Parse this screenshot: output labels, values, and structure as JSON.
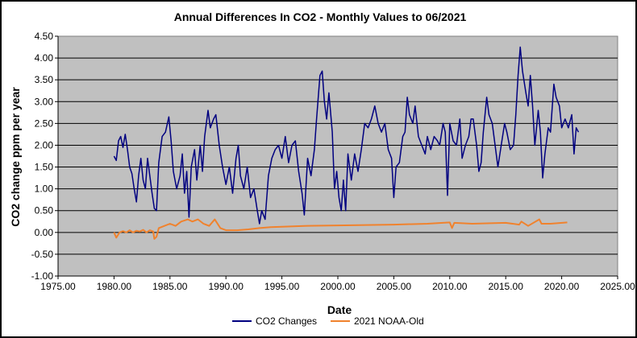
{
  "chart_data": {
    "type": "line",
    "title": "Annual Differences In CO2 - Monthly Values to 06/2021",
    "xlabel": "Date",
    "ylabel": "CO2 change ppm per year",
    "xlim": [
      1975,
      2025
    ],
    "ylim": [
      -1,
      4.5
    ],
    "xticks": [
      "1975.00",
      "1980.00",
      "1985.00",
      "1990.00",
      "1995.00",
      "2000.00",
      "2005.00",
      "2010.00",
      "2015.00",
      "2020.00",
      "2025.00"
    ],
    "yticks": [
      "4.50",
      "4.00",
      "3.50",
      "3.00",
      "2.50",
      "2.00",
      "1.50",
      "1.00",
      "0.50",
      "0.00",
      "-0.50",
      "-1.00"
    ],
    "grid": "horizontal",
    "plot_background": "#C0C0C0",
    "legend_placement": "bottom",
    "series": [
      {
        "name": "CO2 Changes",
        "color": "#000080",
        "x": [
          1980.0,
          1980.2,
          1980.4,
          1980.6,
          1980.8,
          1981.0,
          1981.2,
          1981.4,
          1981.6,
          1981.8,
          1982.0,
          1982.2,
          1982.4,
          1982.6,
          1982.8,
          1983.0,
          1983.2,
          1983.4,
          1983.6,
          1983.8,
          1984.0,
          1984.3,
          1984.6,
          1984.9,
          1985.1,
          1985.3,
          1985.6,
          1985.9,
          1986.1,
          1986.3,
          1986.5,
          1986.7,
          1986.9,
          1987.2,
          1987.4,
          1987.7,
          1987.9,
          1988.1,
          1988.4,
          1988.6,
          1988.9,
          1989.1,
          1989.4,
          1989.7,
          1990.0,
          1990.3,
          1990.6,
          1990.9,
          1991.1,
          1991.3,
          1991.6,
          1991.9,
          1992.2,
          1992.5,
          1992.8,
          1993.0,
          1993.2,
          1993.5,
          1993.8,
          1994.1,
          1994.4,
          1994.7,
          1995.0,
          1995.3,
          1995.6,
          1995.9,
          1996.2,
          1996.5,
          1996.8,
          1997.0,
          1997.3,
          1997.6,
          1997.9,
          1998.1,
          1998.4,
          1998.6,
          1998.8,
          1999.0,
          1999.2,
          1999.5,
          1999.7,
          1999.9,
          2000.1,
          2000.3,
          2000.5,
          2000.7,
          2000.9,
          2001.2,
          2001.5,
          2001.8,
          2002.1,
          2002.4,
          2002.7,
          2003.0,
          2003.3,
          2003.6,
          2003.9,
          2004.2,
          2004.5,
          2004.8,
          2005.0,
          2005.2,
          2005.5,
          2005.8,
          2006.0,
          2006.2,
          2006.4,
          2006.7,
          2006.9,
          2007.2,
          2007.5,
          2007.8,
          2008.0,
          2008.3,
          2008.6,
          2008.9,
          2009.1,
          2009.4,
          2009.6,
          2009.8,
          2010.0,
          2010.3,
          2010.6,
          2010.9,
          2011.1,
          2011.4,
          2011.7,
          2011.9,
          2012.1,
          2012.4,
          2012.6,
          2012.8,
          2013.0,
          2013.3,
          2013.5,
          2013.8,
          2014.0,
          2014.3,
          2014.6,
          2014.9,
          2015.1,
          2015.4,
          2015.7,
          2015.9,
          2016.1,
          2016.3,
          2016.5,
          2016.8,
          2017.0,
          2017.2,
          2017.4,
          2017.6,
          2017.9,
          2018.1,
          2018.3,
          2018.5,
          2018.8,
          2019.0,
          2019.3,
          2019.5,
          2019.8,
          2020.0,
          2020.3,
          2020.6,
          2020.9,
          2021.1,
          2021.3,
          2021.5
        ],
        "y": [
          1.75,
          1.65,
          2.1,
          2.2,
          1.95,
          2.25,
          1.9,
          1.5,
          1.35,
          1.0,
          0.7,
          1.3,
          1.7,
          1.2,
          1.0,
          1.7,
          1.3,
          0.9,
          0.55,
          0.5,
          1.6,
          2.2,
          2.3,
          2.65,
          2.1,
          1.4,
          1.0,
          1.3,
          1.8,
          0.9,
          1.4,
          0.35,
          1.5,
          1.9,
          1.2,
          2.0,
          1.4,
          2.2,
          2.8,
          2.4,
          2.6,
          2.7,
          2.0,
          1.5,
          1.1,
          1.5,
          0.9,
          1.7,
          2.0,
          1.3,
          1.0,
          1.5,
          0.8,
          1.0,
          0.5,
          0.2,
          0.5,
          0.3,
          1.3,
          1.7,
          1.9,
          2.0,
          1.7,
          2.2,
          1.6,
          2.0,
          2.1,
          1.4,
          0.9,
          0.4,
          1.7,
          1.3,
          1.9,
          2.6,
          3.6,
          3.7,
          3.0,
          2.6,
          3.2,
          2.3,
          1.0,
          1.4,
          0.8,
          0.5,
          1.2,
          0.5,
          1.8,
          1.2,
          1.8,
          1.4,
          1.9,
          2.5,
          2.4,
          2.6,
          2.9,
          2.5,
          2.3,
          2.5,
          1.9,
          1.7,
          0.8,
          1.5,
          1.6,
          2.2,
          2.3,
          3.1,
          2.7,
          2.5,
          2.9,
          2.2,
          2.0,
          1.8,
          2.2,
          1.9,
          2.2,
          2.1,
          2.0,
          2.5,
          2.3,
          0.85,
          2.5,
          2.1,
          2.0,
          2.6,
          1.7,
          2.0,
          2.2,
          2.6,
          2.6,
          2.0,
          1.4,
          1.6,
          2.3,
          3.1,
          2.7,
          2.5,
          2.1,
          1.5,
          2.0,
          2.5,
          2.3,
          1.9,
          2.0,
          2.7,
          3.6,
          4.25,
          3.7,
          3.2,
          2.9,
          3.6,
          2.9,
          2.0,
          2.8,
          2.3,
          1.25,
          1.8,
          2.4,
          2.3,
          3.4,
          3.1,
          2.9,
          2.4,
          2.6,
          2.4,
          2.7,
          1.8,
          2.4,
          2.3
        ]
      },
      {
        "name": "2021 NOAA-Old",
        "color": "#F0822D",
        "x": [
          1980.0,
          1980.2,
          1980.5,
          1980.8,
          1981.1,
          1981.4,
          1981.7,
          1982.0,
          1982.3,
          1982.6,
          1982.9,
          1983.2,
          1983.5,
          1983.6,
          1983.8,
          1984.0,
          1984.5,
          1985.0,
          1985.5,
          1986.0,
          1986.6,
          1987.0,
          1987.5,
          1988.0,
          1988.5,
          1989.0,
          1989.5,
          1990.0,
          1991.0,
          1992.0,
          1993.0,
          1994.0,
          1995.0,
          1997.0,
          2000.0,
          2005.0,
          2008.0,
          2010.0,
          2010.2,
          2010.4,
          2012.0,
          2015.0,
          2016.2,
          2016.4,
          2017.0,
          2018.0,
          2018.2,
          2019.0,
          2020.5
        ],
        "y": [
          0.0,
          -0.12,
          0.0,
          0.03,
          0.0,
          0.05,
          0.0,
          0.04,
          0.02,
          0.06,
          0.0,
          0.05,
          0.02,
          -0.15,
          -0.1,
          0.1,
          0.15,
          0.2,
          0.15,
          0.25,
          0.3,
          0.25,
          0.3,
          0.2,
          0.15,
          0.3,
          0.1,
          0.05,
          0.05,
          0.07,
          0.1,
          0.12,
          0.13,
          0.15,
          0.16,
          0.18,
          0.2,
          0.23,
          0.1,
          0.22,
          0.2,
          0.22,
          0.18,
          0.25,
          0.15,
          0.3,
          0.2,
          0.2,
          0.23
        ]
      }
    ]
  }
}
